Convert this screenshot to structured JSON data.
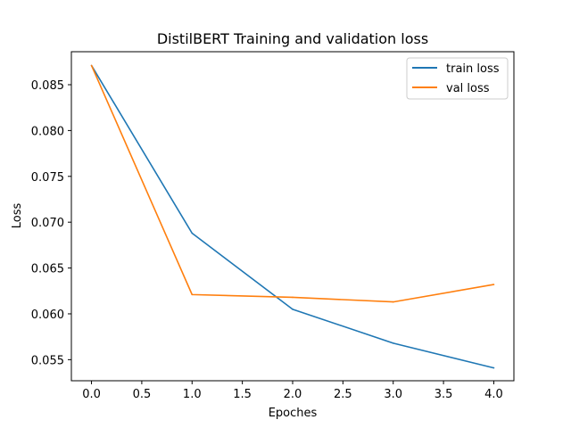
{
  "chart_data": {
    "type": "line",
    "title": "DistilBERT Training and validation loss",
    "xlabel": "Epoches",
    "ylabel": "Loss",
    "xlim": [
      -0.2,
      4.2
    ],
    "ylim": [
      0.0527,
      0.0886
    ],
    "x_ticks": [
      0.0,
      0.5,
      1.0,
      1.5,
      2.0,
      2.5,
      3.0,
      3.5,
      4.0
    ],
    "x_tick_labels": [
      "0.0",
      "0.5",
      "1.0",
      "1.5",
      "2.0",
      "2.5",
      "3.0",
      "3.5",
      "4.0"
    ],
    "y_ticks": [
      0.055,
      0.06,
      0.065,
      0.07,
      0.075,
      0.08,
      0.085
    ],
    "y_tick_labels": [
      "0.055",
      "0.060",
      "0.065",
      "0.070",
      "0.075",
      "0.080",
      "0.085"
    ],
    "grid": false,
    "legend_position": "top-right",
    "x": [
      0,
      1,
      2,
      3,
      4
    ],
    "series": [
      {
        "name": "train loss",
        "color": "#1f77b4",
        "values": [
          0.0871,
          0.0688,
          0.0605,
          0.0568,
          0.0541
        ]
      },
      {
        "name": "val loss",
        "color": "#ff7f0e",
        "values": [
          0.0871,
          0.0621,
          0.0618,
          0.0613,
          0.0632
        ]
      }
    ]
  }
}
